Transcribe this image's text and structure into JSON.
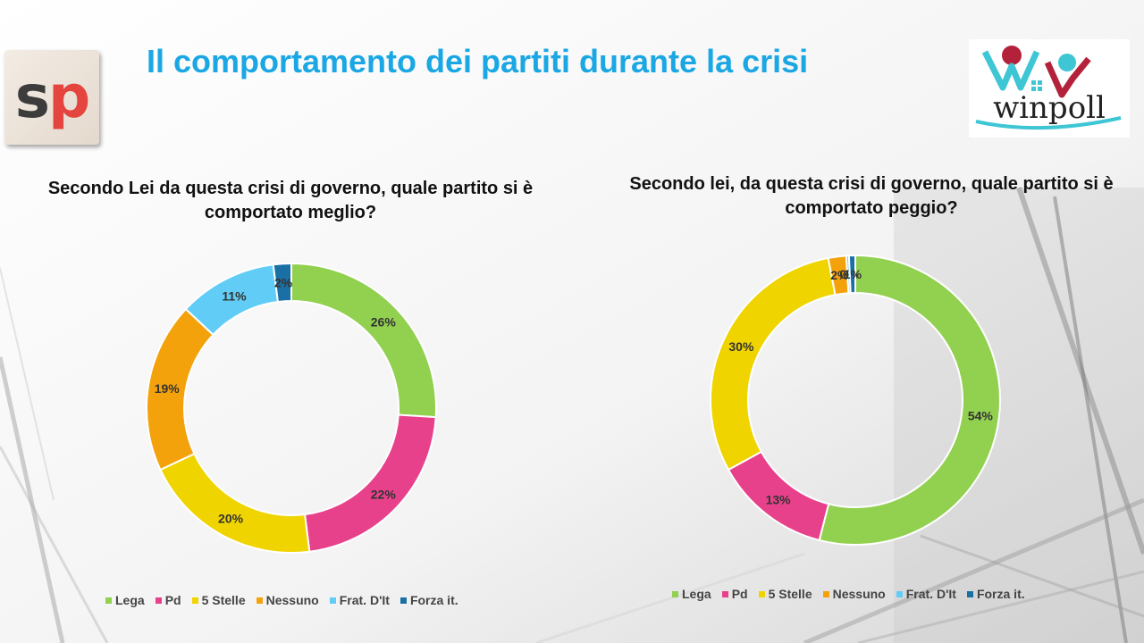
{
  "header": {
    "title": "Il comportamento dei partiti durante la crisi",
    "logo_left": "sp",
    "logo_right": "winpoll"
  },
  "chart_data": [
    {
      "type": "donut",
      "title": "Secondo Lei da questa crisi di governo, quale partito si è comportato meglio?",
      "categories": [
        "Lega",
        "Pd",
        "5 Stelle",
        "Nessuno",
        "Frat. D'It",
        "Forza it."
      ],
      "values": [
        26,
        22,
        20,
        19,
        11,
        2
      ],
      "labels": [
        "26%",
        "22%",
        "20%",
        "19%",
        "11%",
        "2%"
      ],
      "legend_position": "bottom"
    },
    {
      "type": "donut",
      "title": "Secondo lei, da questa crisi di governo, quale partito si è comportato peggio?",
      "categories": [
        "Lega",
        "Pd",
        "5 Stelle",
        "Nessuno",
        "Frat. D'It",
        "Forza it."
      ],
      "values": [
        54,
        13,
        30,
        2,
        0.3,
        0.7
      ],
      "labels": [
        "54%",
        "13%",
        "30%",
        "2%",
        "0%",
        "1%"
      ],
      "legend_position": "bottom"
    }
  ],
  "colors": [
    "#92d050",
    "#e8418b",
    "#f0d400",
    "#f4a20c",
    "#61cdf6",
    "#1a6fa5"
  ]
}
